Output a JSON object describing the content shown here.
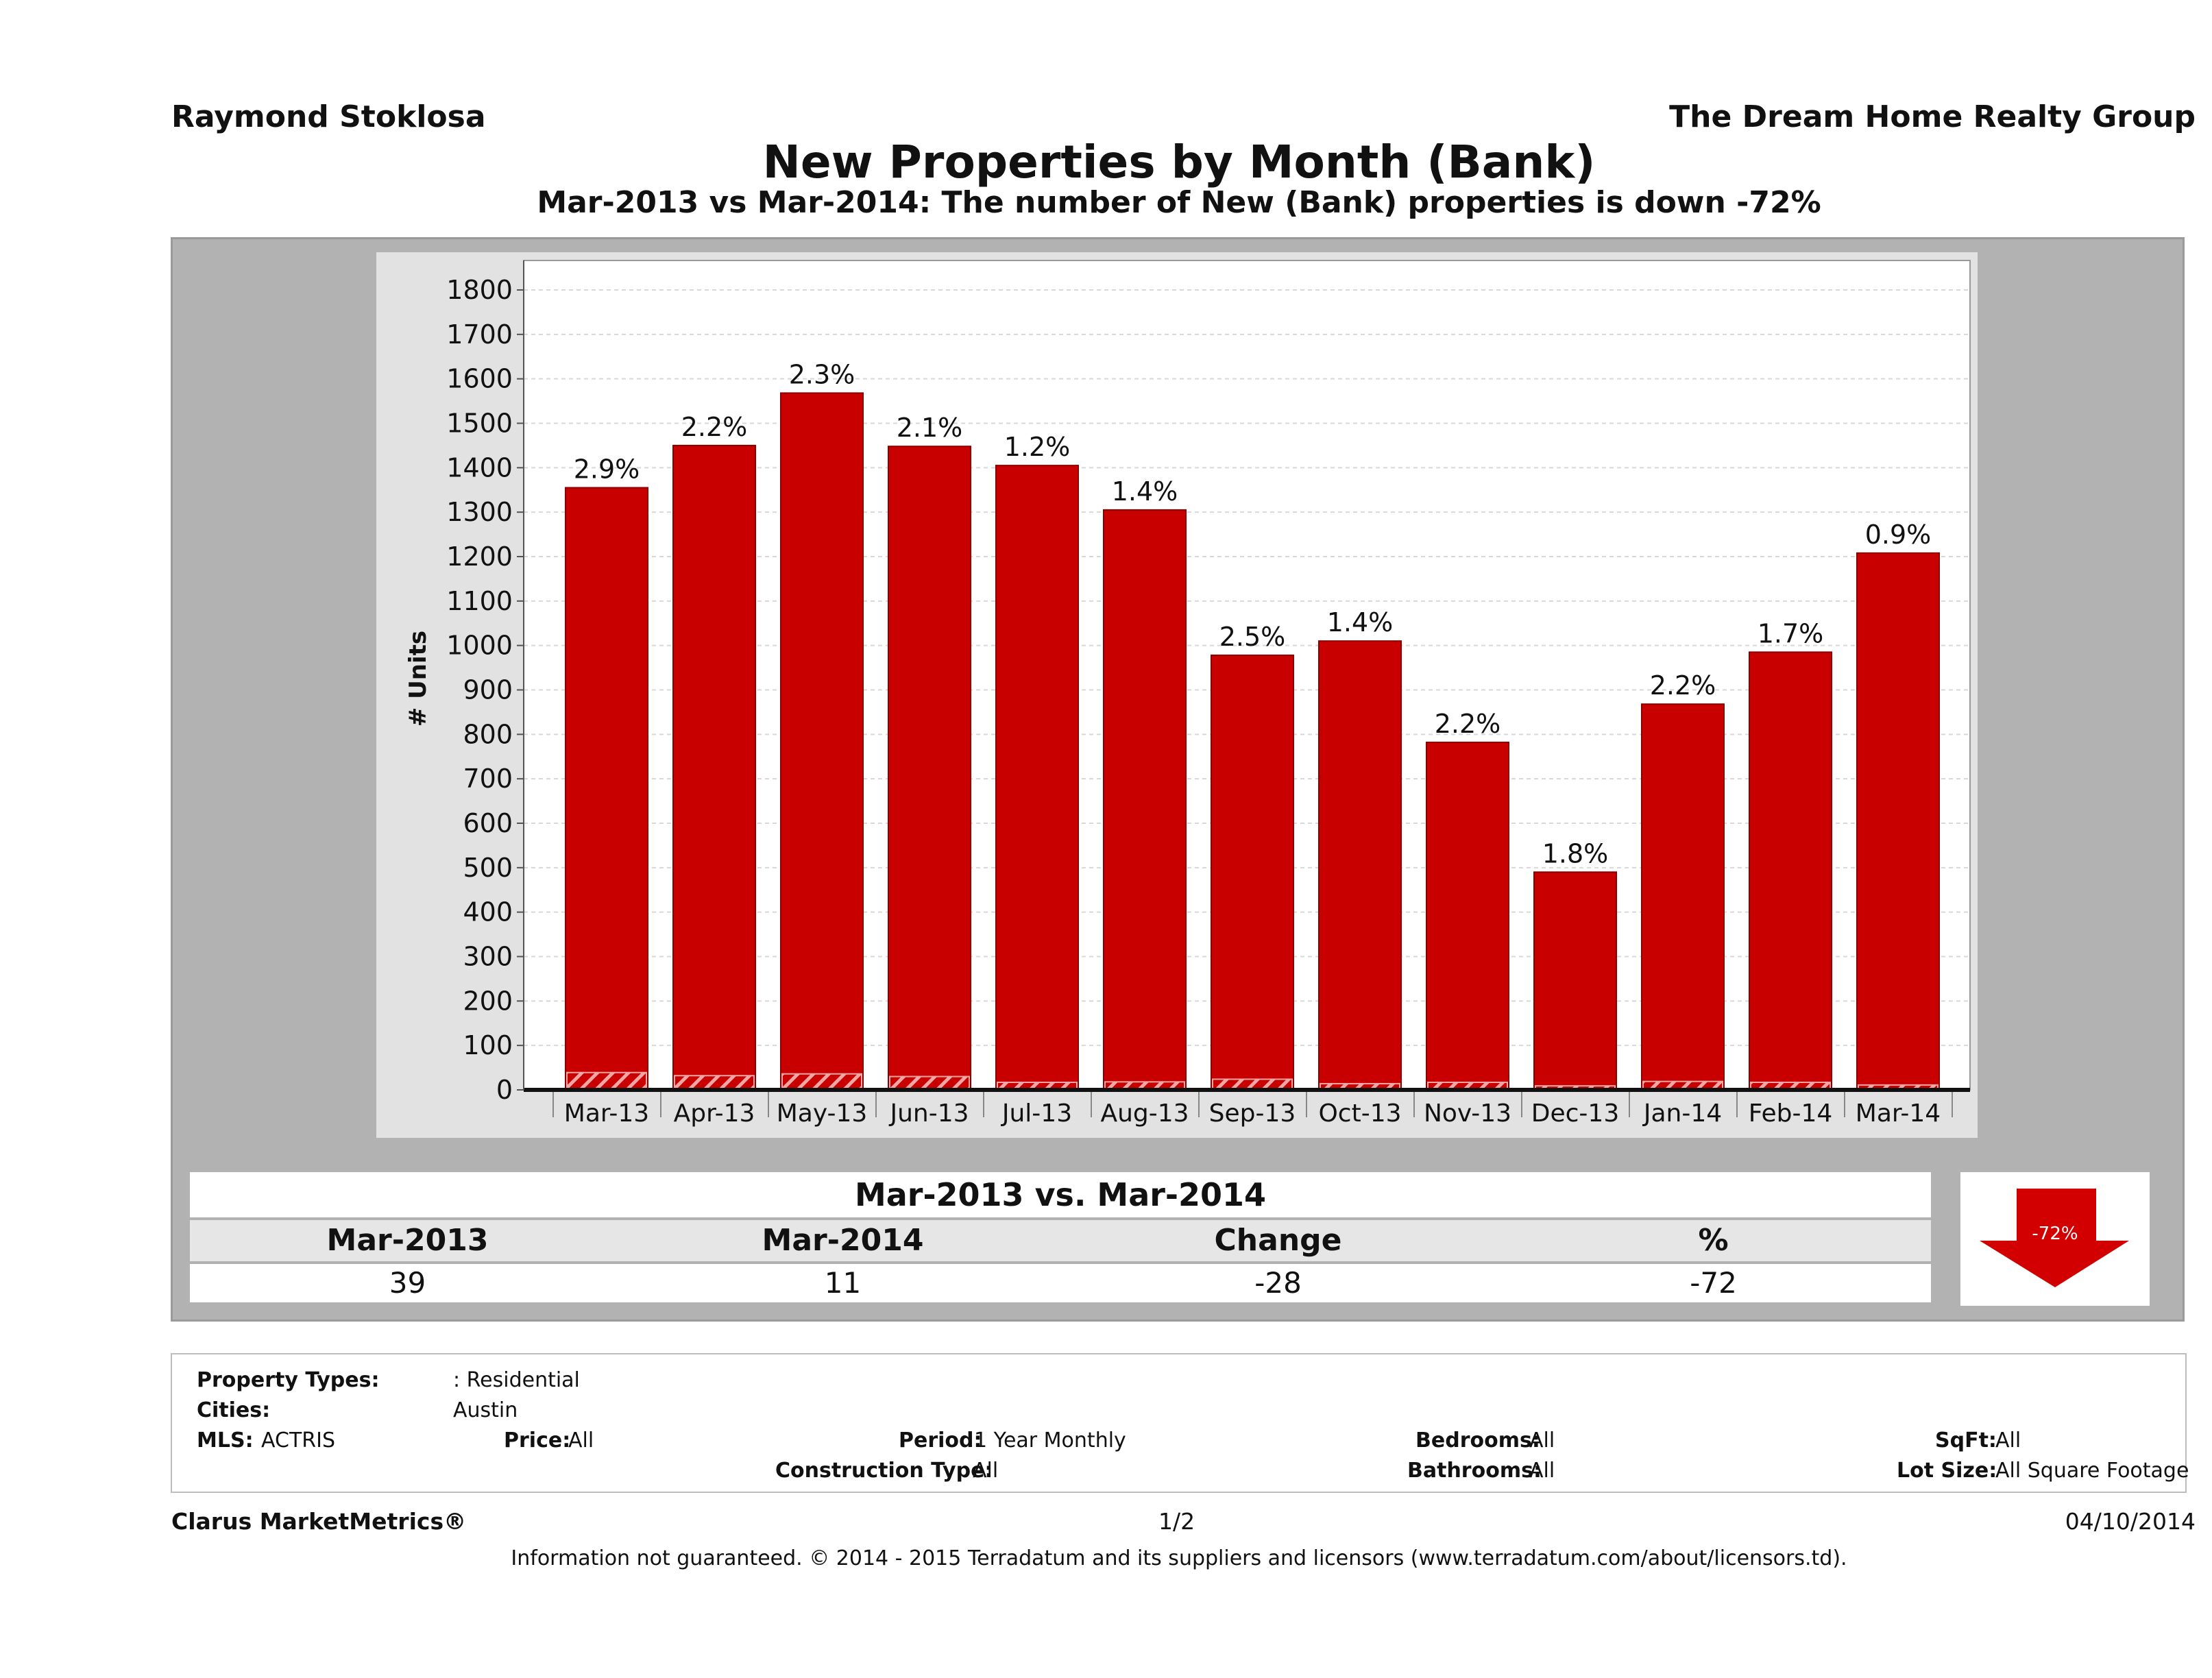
{
  "header": {
    "agent_name": "Raymond Stoklosa",
    "company": "The Dream Home Realty Group",
    "title": "New Properties by Month (Bank)",
    "subtitle": "Mar-2013 vs Mar-2014: The number of New (Bank)  properties is down -72%"
  },
  "chart_data": {
    "type": "bar",
    "ylabel": "# Units",
    "ylim": [
      0,
      1850
    ],
    "yticks": [
      0,
      100,
      200,
      300,
      400,
      500,
      600,
      700,
      800,
      900,
      1000,
      1100,
      1200,
      1300,
      1400,
      1500,
      1600,
      1700,
      1800
    ],
    "grid": true,
    "categories": [
      "Mar-13",
      "Apr-13",
      "May-13",
      "Jun-13",
      "Jul-13",
      "Aug-13",
      "Sep-13",
      "Oct-13",
      "Nov-13",
      "Dec-13",
      "Jan-14",
      "Feb-14",
      "Mar-14"
    ],
    "series": [
      {
        "values": [
          1355,
          1450,
          1568,
          1448,
          1405,
          1305,
          978,
          1010,
          782,
          490,
          868,
          985,
          1208
        ]
      },
      {
        "values": [
          39,
          32,
          36,
          30,
          17,
          18,
          24,
          14,
          17,
          9,
          19,
          17,
          11
        ]
      }
    ],
    "data_labels": [
      "2.9%",
      "2.2%",
      "2.3%",
      "2.1%",
      "1.2%",
      "1.4%",
      "2.5%",
      "1.4%",
      "2.2%",
      "1.8%",
      "2.2%",
      "1.7%",
      "0.9%"
    ],
    "colors": {
      "bar": "#c80000",
      "bank": "#c80000",
      "bank_hatch": "#f2a6a6"
    }
  },
  "comparison": {
    "title": "Mar-2013 vs. Mar-2014",
    "headers": [
      "Mar-2013",
      "Mar-2014",
      "Change",
      "%"
    ],
    "values": [
      "39",
      "11",
      "-28",
      "-72"
    ],
    "badge": "-72%"
  },
  "criteria": {
    "property_types_label": "Property Types:",
    "property_types": ": Residential",
    "cities_label": "Cities:",
    "cities": "Austin",
    "mls_label": "MLS:",
    "mls": "ACTRIS",
    "price_label": "Price:",
    "price": "All",
    "period_label": "Period:",
    "period": "1 Year Monthly",
    "construction_label": "Construction Type:",
    "construction": "All",
    "bedrooms_label": "Bedrooms:",
    "bedrooms": "All",
    "bathrooms_label": "Bathrooms:",
    "bathrooms": "All",
    "sqft_label": "SqFt:",
    "sqft": "All",
    "lotsize_label": "Lot Size:",
    "lotsize": "All Square Footage"
  },
  "footer": {
    "brand": "Clarus MarketMetrics®",
    "page": "1/2",
    "date": "04/10/2014",
    "disclaimer": "Information not guaranteed. © 2014 - 2015 Terradatum and its suppliers and licensors (www.terradatum.com/about/licensors.td)."
  }
}
